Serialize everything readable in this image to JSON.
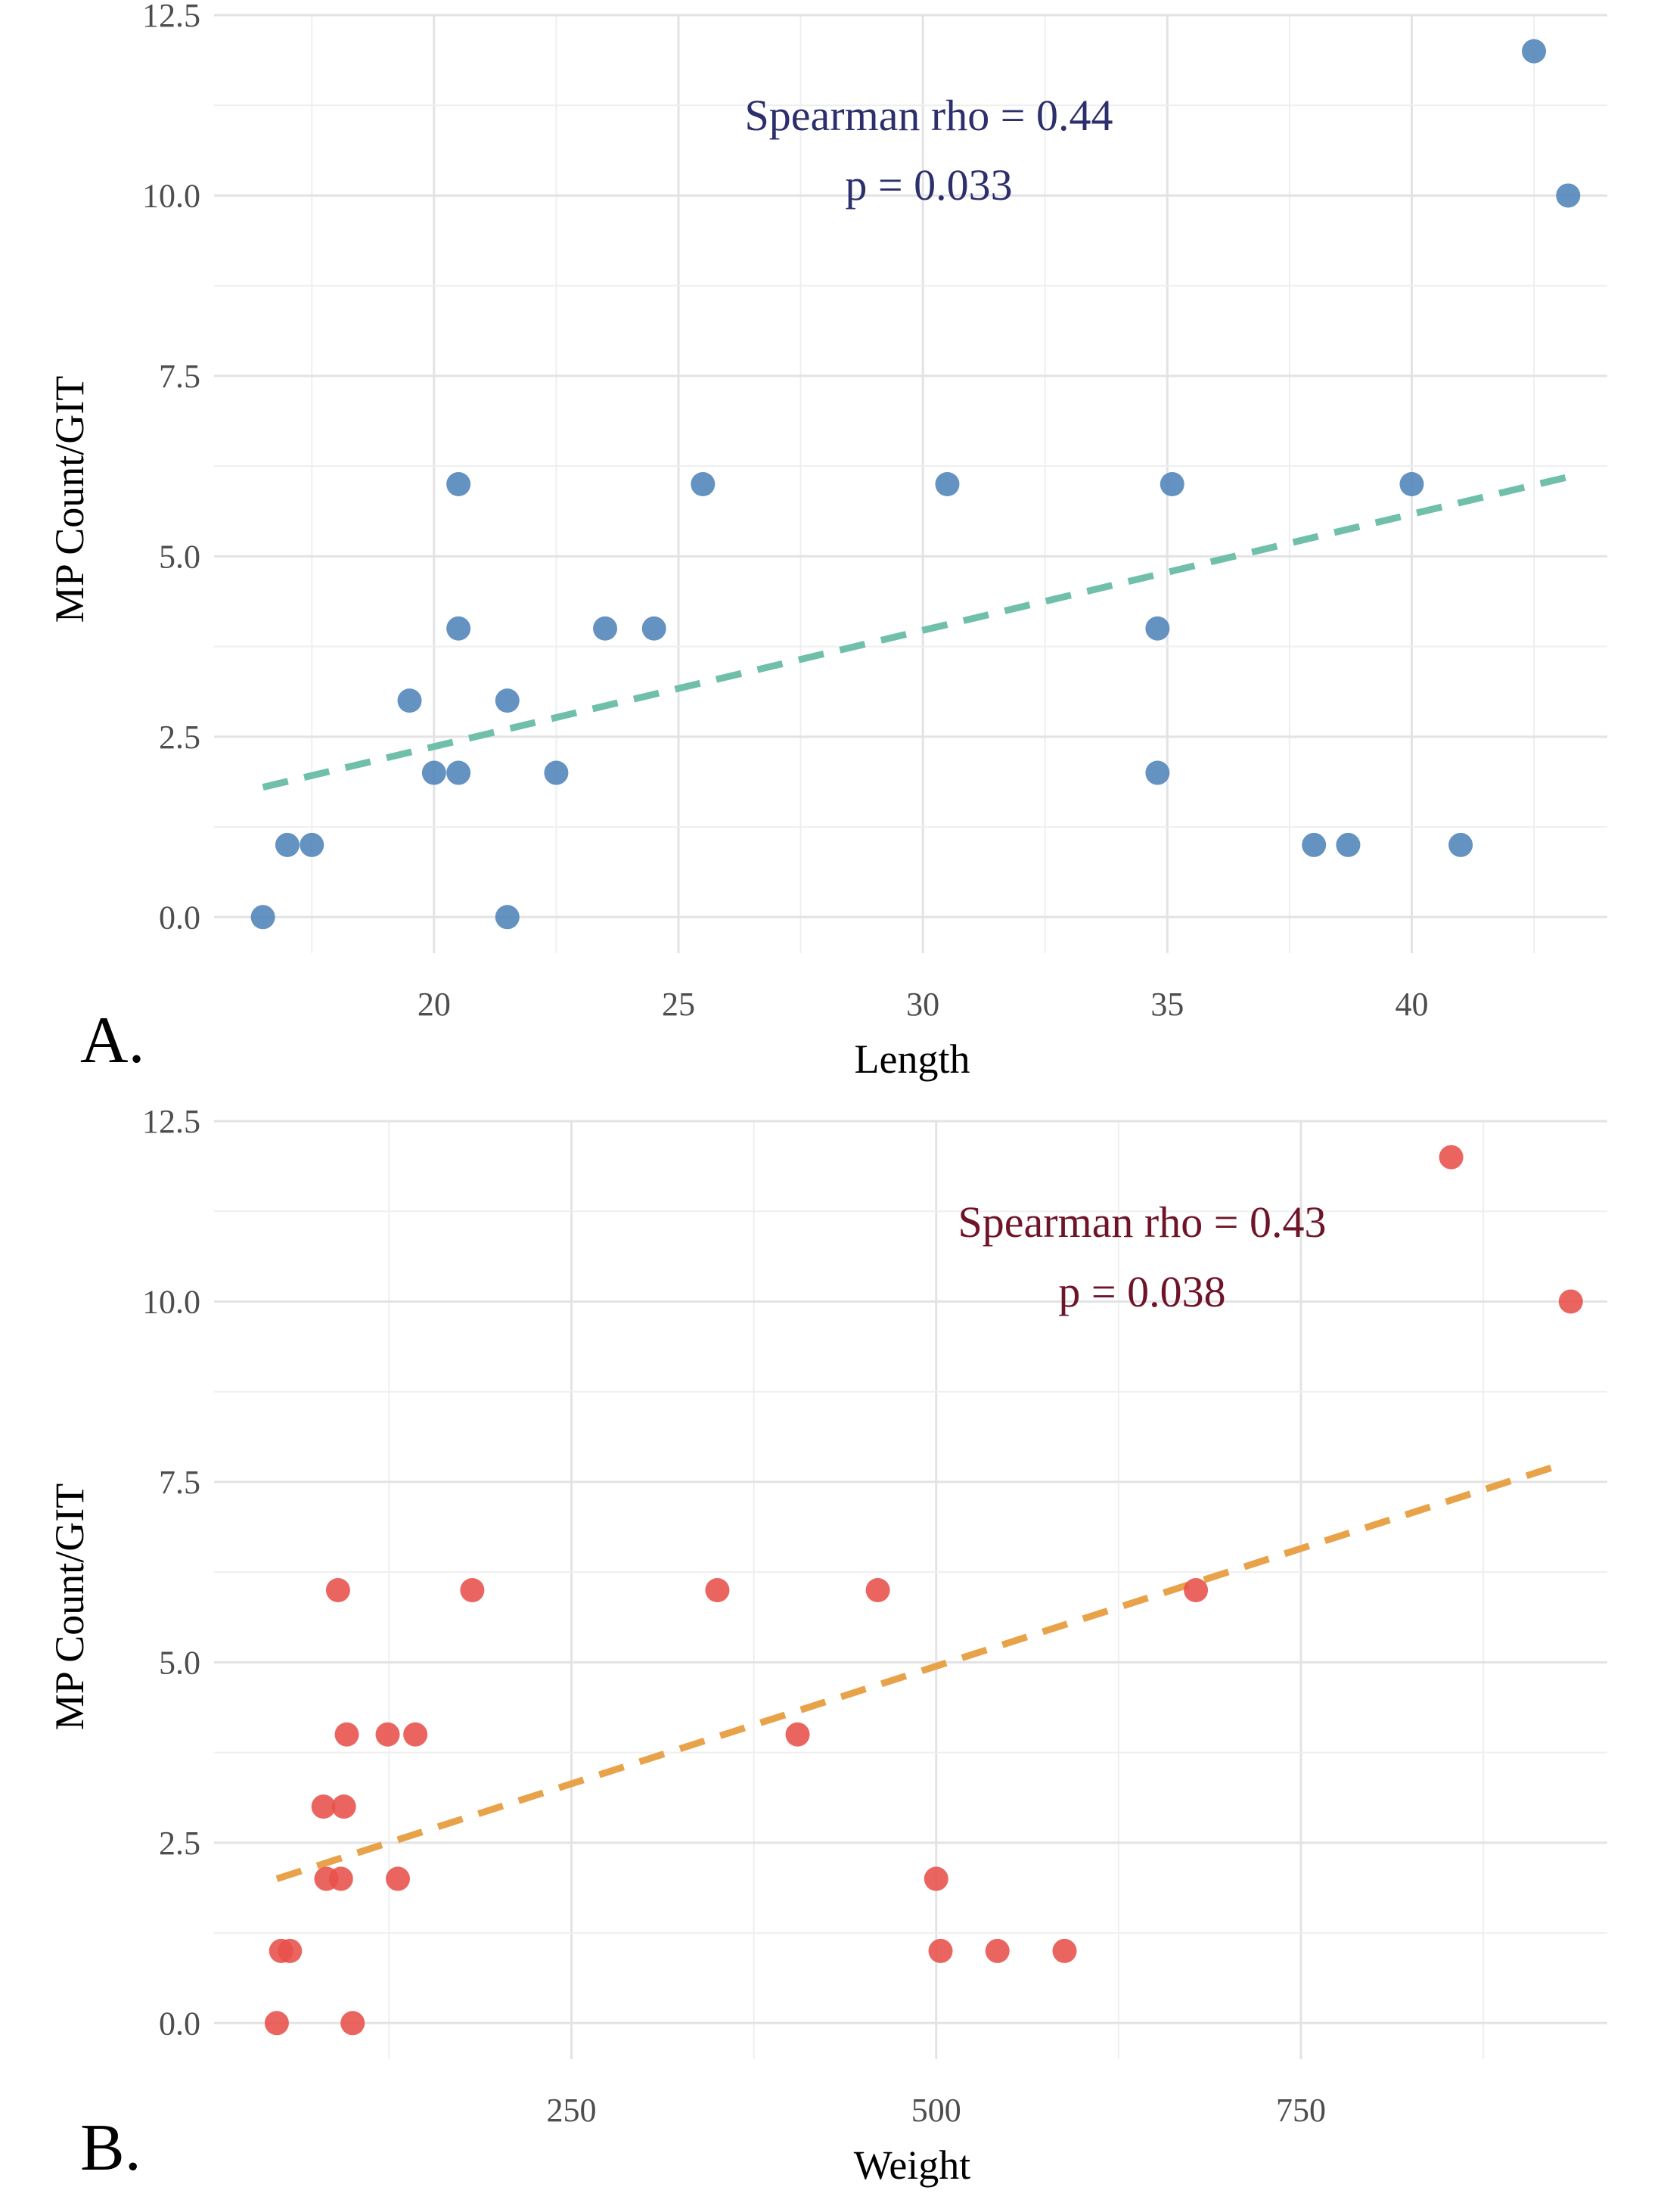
{
  "chart_data": [
    {
      "type": "scatter",
      "panel_label": "A.",
      "title": "",
      "xlabel": "Length",
      "ylabel": "MP Count/GIT",
      "xlim": [
        15.5,
        44.0
      ],
      "ylim": [
        -0.5,
        12.5
      ],
      "x_ticks": [
        20,
        25,
        30,
        35,
        40
      ],
      "x_tick_labels": [
        "20",
        "25",
        "30",
        "35",
        "40"
      ],
      "y_ticks": [
        0,
        2.5,
        5,
        7.5,
        10,
        12.5
      ],
      "y_tick_labels": [
        "0.0",
        "2.5",
        "5.0",
        "7.5",
        "10.0",
        "12.5"
      ],
      "grid": true,
      "point_color": "#4f83b8",
      "trend_color": "#6fbfaa",
      "annotation_color": "#2c2f6b",
      "annotation": [
        "Spearman rho = 0.44",
        "p = 0.033"
      ],
      "trend_line": {
        "x": [
          16.5,
          43.2
        ],
        "y": [
          1.8,
          6.1
        ]
      },
      "x": [
        16.5,
        17.0,
        17.5,
        19.5,
        20.0,
        20.5,
        20.5,
        20.5,
        21.5,
        21.5,
        22.5,
        23.5,
        24.5,
        25.5,
        30.5,
        34.8,
        34.8,
        35.1,
        38.0,
        38.7,
        40.0,
        41.0,
        42.5,
        43.2
      ],
      "y": [
        0,
        1,
        1,
        3,
        2,
        2,
        4,
        6,
        3,
        0,
        2,
        4,
        4,
        6,
        6,
        4,
        2,
        6,
        1,
        1,
        6,
        1,
        12,
        10
      ]
    },
    {
      "type": "scatter",
      "panel_label": "B.",
      "title": "",
      "xlabel": "Weight",
      "ylabel": "MP Count/GIT",
      "xlim": [
        5,
        960
      ],
      "ylim": [
        -0.5,
        12.5
      ],
      "x_ticks": [
        250,
        500,
        750
      ],
      "x_tick_labels": [
        "250",
        "500",
        "750"
      ],
      "y_ticks": [
        0,
        2.5,
        5,
        7.5,
        10,
        12.5
      ],
      "y_tick_labels": [
        "0.0",
        "2.5",
        "5.0",
        "7.5",
        "10.0",
        "12.5"
      ],
      "grid": true,
      "point_color": "#e8504a",
      "trend_color": "#e8a24a",
      "annotation_color": "#6e1428",
      "annotation": [
        "Spearman rho = 0.43",
        "p = 0.038"
      ],
      "trend_line": {
        "x": [
          48,
          930
        ],
        "y": [
          2.0,
          7.75
        ]
      },
      "x": [
        48,
        51,
        57,
        80,
        82,
        90,
        92,
        94,
        96,
        100,
        124,
        131,
        143,
        182,
        350,
        405,
        460,
        500,
        503,
        542,
        588,
        678,
        853,
        935
      ],
      "y": [
        0,
        1,
        1,
        3,
        2,
        6,
        2,
        3,
        4,
        0,
        4,
        2,
        4,
        6,
        6,
        4,
        6,
        2,
        1,
        1,
        1,
        6,
        12,
        10
      ]
    }
  ]
}
